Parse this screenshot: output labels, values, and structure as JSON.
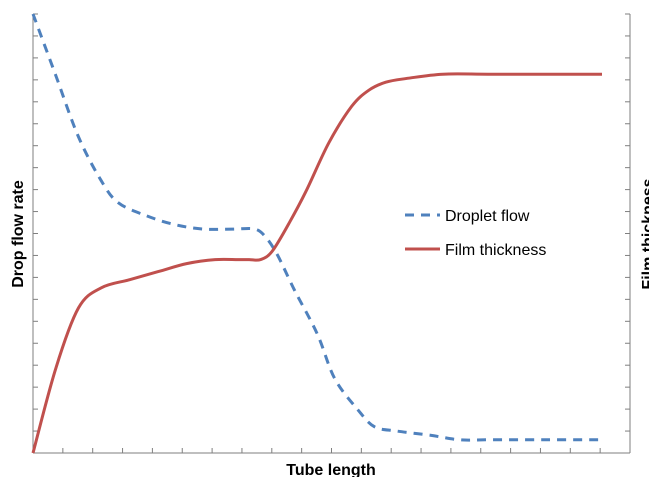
{
  "chart_data": {
    "type": "line",
    "xlabel": "Tube length",
    "ylabel": "Drop flow rate",
    "y2label": "Film thickness",
    "title": "",
    "grid": false,
    "tick_labels_shown": false,
    "legend_position": "center-right",
    "xlim": [
      0,
      100
    ],
    "ylim": [
      0,
      100
    ],
    "y2lim": [
      0,
      100
    ],
    "series": [
      {
        "name": "Droplet flow",
        "axis": "left",
        "style": "dashed",
        "color": "#4f81bd",
        "x": [
          0,
          4,
          8,
          12,
          15,
          20,
          25,
          30,
          35,
          39,
          41,
          43,
          46,
          50,
          53,
          57,
          60,
          64,
          70,
          75,
          80,
          90,
          100
        ],
        "y": [
          100,
          86,
          72,
          62,
          57,
          54,
          52,
          51,
          51,
          51,
          49,
          45,
          37,
          27,
          17,
          10,
          6,
          5,
          4,
          3,
          3,
          3,
          3
        ]
      },
      {
        "name": "Film thickness",
        "axis": "right",
        "style": "solid",
        "color": "#c0504d",
        "x": [
          0,
          4,
          8,
          12,
          17,
          22,
          27,
          32,
          36,
          38,
          40,
          42,
          45,
          48,
          52,
          56,
          59,
          62,
          66,
          72,
          80,
          90,
          100
        ],
        "y": [
          0,
          21,
          36,
          41,
          43,
          45,
          47,
          48,
          48,
          48,
          48,
          50,
          57,
          65,
          77,
          86,
          90,
          92,
          93,
          94,
          94,
          94,
          94
        ]
      }
    ]
  }
}
